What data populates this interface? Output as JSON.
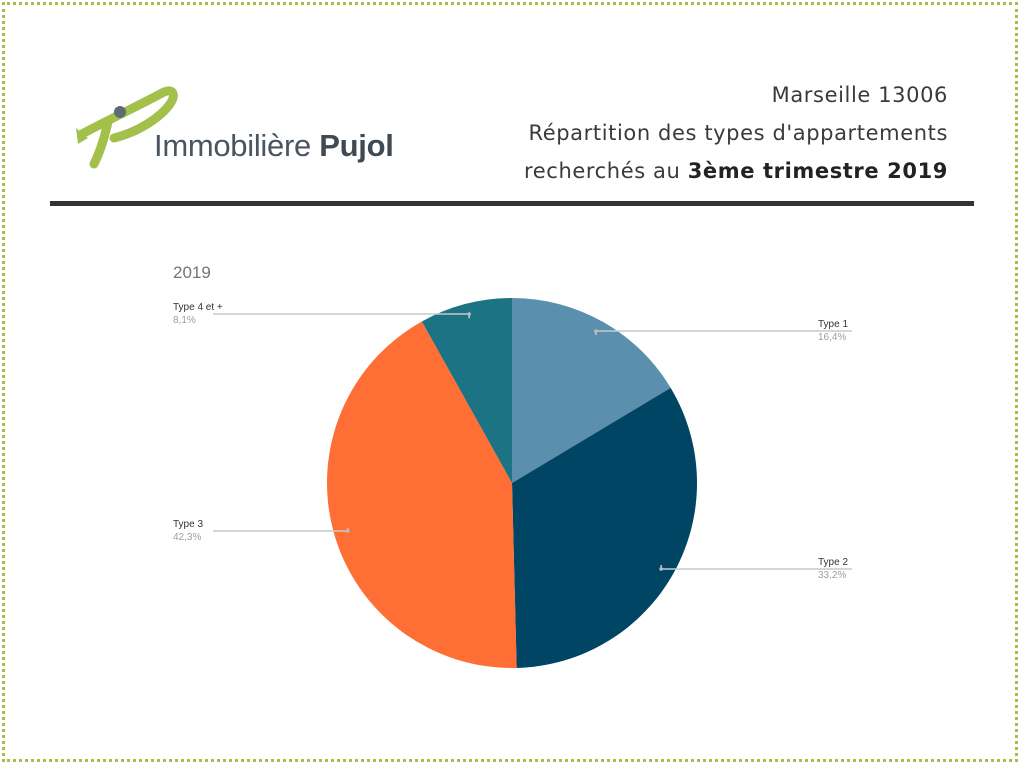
{
  "brand": {
    "name_light": "Immobilière",
    "name_bold": "Pujol",
    "logo_color": "#a3c14a"
  },
  "header": {
    "line1": "Marseille 13006",
    "line2": "Répartition des types d'appartements",
    "line3_prefix": "recherchés au ",
    "line3_bold": "3ème trimestre 2019"
  },
  "chart_data": {
    "type": "pie",
    "title": "2019",
    "slices": [
      {
        "label": "Type 1",
        "value": 16.4,
        "display": "16,4%",
        "color": "#5a90ae"
      },
      {
        "label": "Type 2",
        "value": 33.2,
        "display": "33,2%",
        "color": "#004664"
      },
      {
        "label": "Type 3",
        "value": 42.3,
        "display": "42,3%",
        "color": "#ff6e34"
      },
      {
        "label": "Type 4 et +",
        "value": 8.1,
        "display": "8,1%",
        "color": "#1c7384"
      }
    ]
  }
}
